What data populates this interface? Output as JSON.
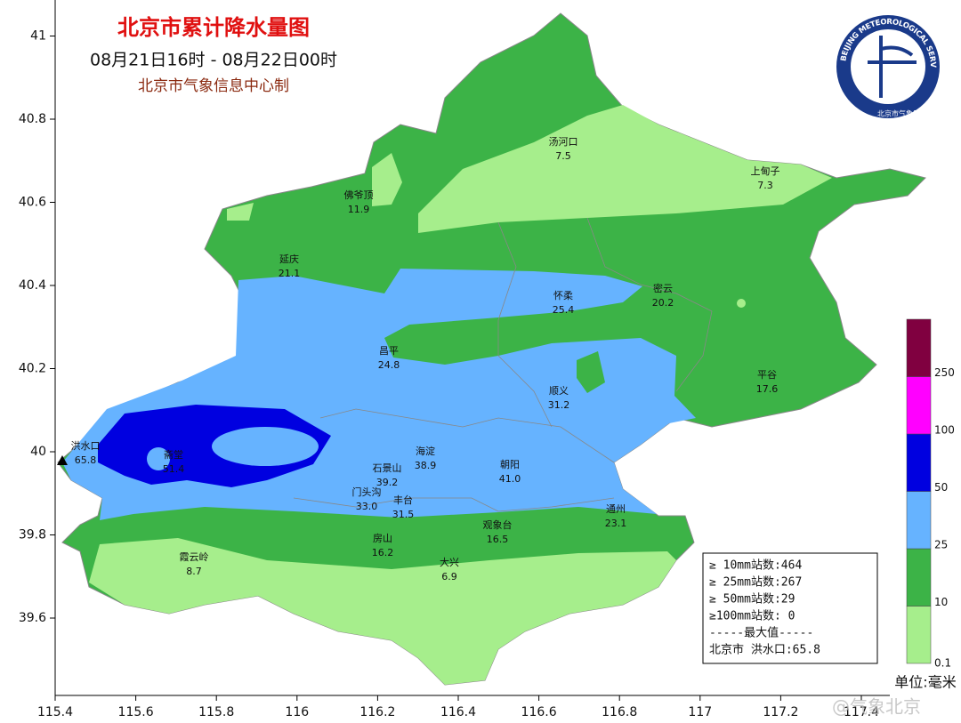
{
  "header": {
    "title": "北京市累计降水量图",
    "period": "08月21日16时 - 08月22日00时",
    "producer": "北京市气象信息中心制"
  },
  "logo": {
    "ring_text": "BEIJING METEOROLOGICAL SERVICE",
    "agency": "北京市气象局"
  },
  "axes": {
    "lat_ticks": [
      41,
      40.8,
      40.6,
      40.4,
      40.2,
      40,
      39.8,
      39.6
    ],
    "lon_ticks": [
      115.4,
      115.6,
      115.8,
      116,
      116.2,
      116.4,
      116.6,
      116.8,
      117,
      117.2,
      117.4
    ]
  },
  "stations": [
    {
      "name": "汤河口",
      "value": "7.5"
    },
    {
      "name": "上甸子",
      "value": "7.3"
    },
    {
      "name": "佛爷顶",
      "value": "11.9"
    },
    {
      "name": "延庆",
      "value": "21.1"
    },
    {
      "name": "怀柔",
      "value": "25.4"
    },
    {
      "name": "密云",
      "value": "20.2"
    },
    {
      "name": "昌平",
      "value": "24.8"
    },
    {
      "name": "平谷",
      "value": "17.6"
    },
    {
      "name": "顺义",
      "value": "31.2"
    },
    {
      "name": "洪水口",
      "value": "65.8"
    },
    {
      "name": "斋堂",
      "value": "51.4"
    },
    {
      "name": "海淀",
      "value": "38.9"
    },
    {
      "name": "朝阳",
      "value": "41.0"
    },
    {
      "name": "石景山",
      "value": "39.2"
    },
    {
      "name": "门头沟",
      "value": "33.0"
    },
    {
      "name": "丰台",
      "value": "31.5"
    },
    {
      "name": "观象台",
      "value": "16.5"
    },
    {
      "name": "通州",
      "value": "23.1"
    },
    {
      "name": "房山",
      "value": "16.2"
    },
    {
      "name": "霞云岭",
      "value": "8.7"
    },
    {
      "name": "大兴",
      "value": "6.9"
    }
  ],
  "legend": {
    "levels": [
      0.1,
      10,
      25,
      50,
      100,
      250
    ],
    "colors": [
      "#a6ee8c",
      "#3cb347",
      "#66b3ff",
      "#0000e0",
      "#ff00ff",
      "#800040"
    ]
  },
  "stats": {
    "lines": [
      "≥ 10mm站数:464",
      "≥ 25mm站数:267",
      "≥ 50mm站数:29",
      "≥100mm站数: 0",
      "-----最大值-----",
      "北京市 洪水口:65.8"
    ]
  },
  "unit": "单位:毫米",
  "watermark": "@气象北京"
}
